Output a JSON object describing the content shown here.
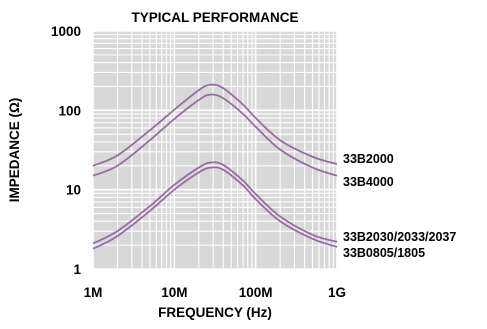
{
  "chart_data": {
    "type": "line",
    "title": "TYPICAL PERFORMANCE",
    "xlabel": "FREQUENCY (Hz)",
    "ylabel": "IMPEDANCE (Ω)",
    "x_scale": "log",
    "y_scale": "log",
    "xlim": [
      1000000,
      1000000000
    ],
    "ylim": [
      1,
      1000
    ],
    "x_ticks": [
      {
        "value": 1000000,
        "label": "1M"
      },
      {
        "value": 10000000,
        "label": "10M"
      },
      {
        "value": 100000000,
        "label": "100M"
      },
      {
        "value": 1000000000,
        "label": "1G"
      }
    ],
    "y_ticks": [
      {
        "value": 1,
        "label": "1"
      },
      {
        "value": 10,
        "label": "10"
      },
      {
        "value": 100,
        "label": "100"
      },
      {
        "value": 1000,
        "label": "1000"
      }
    ],
    "grid": true,
    "series_color": "#9a6aa6",
    "plot_background": "#d8d8d8",
    "series": [
      {
        "name": "33B2000",
        "x": [
          1000000,
          2000000,
          5000000,
          10000000,
          20000000,
          28000000,
          40000000,
          70000000,
          100000000,
          200000000,
          500000000,
          1000000000
        ],
        "y": [
          20,
          27,
          56,
          102,
          180,
          210,
          190,
          118,
          80,
          42,
          26,
          21
        ]
      },
      {
        "name": "33B4000",
        "x": [
          1000000,
          2000000,
          5000000,
          10000000,
          20000000,
          28000000,
          40000000,
          70000000,
          100000000,
          200000000,
          500000000,
          1000000000
        ],
        "y": [
          15,
          20,
          42,
          78,
          135,
          158,
          142,
          90,
          62,
          32,
          19,
          15
        ]
      },
      {
        "name": "33B2030/2033/2037",
        "x": [
          1000000,
          2000000,
          5000000,
          10000000,
          20000000,
          28000000,
          40000000,
          70000000,
          100000000,
          200000000,
          500000000,
          1000000000
        ],
        "y": [
          2.1,
          3.0,
          6.2,
          11.5,
          19.0,
          22.0,
          20.5,
          13.0,
          8.8,
          4.6,
          2.7,
          2.2
        ]
      },
      {
        "name": "33B0805/1805",
        "x": [
          1000000,
          2000000,
          5000000,
          10000000,
          20000000,
          28000000,
          40000000,
          70000000,
          100000000,
          200000000,
          500000000,
          1000000000
        ],
        "y": [
          1.8,
          2.6,
          5.4,
          10.0,
          16.5,
          19.0,
          17.8,
          11.3,
          7.6,
          4.0,
          2.4,
          1.9
        ]
      }
    ]
  }
}
